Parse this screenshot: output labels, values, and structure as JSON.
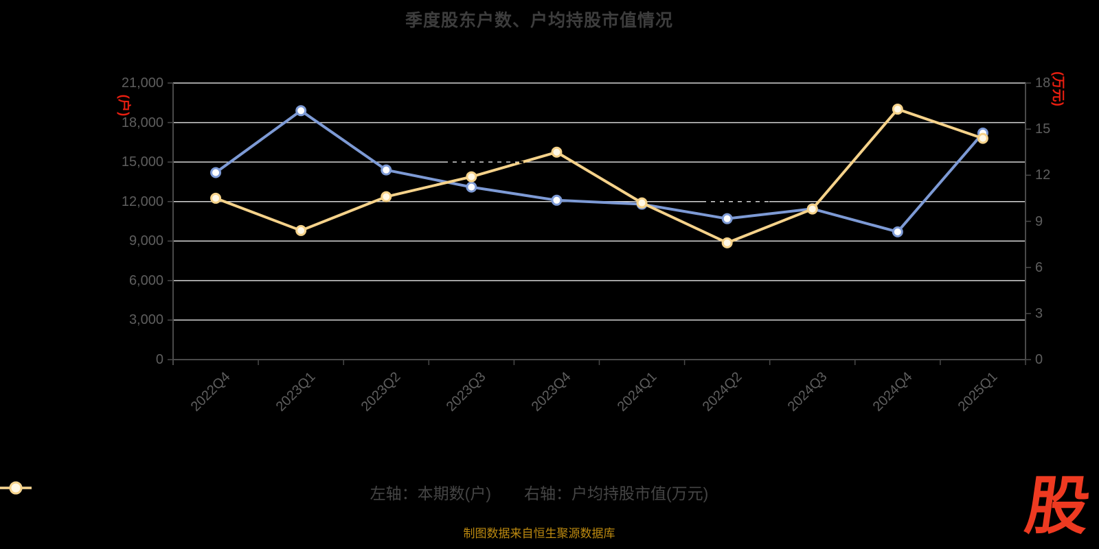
{
  "title": "季度股东户数、户均持股市值情况",
  "footer": {
    "text": "制图数据来自恒生聚源数据库",
    "color": "#bd8a10"
  },
  "logo": {
    "text": "股",
    "color": "#ee3a21"
  },
  "colors": {
    "background": "#000000",
    "title": "#3d3d3d",
    "axis_line": "#4a4a4a",
    "grid_line": "#d6d6d6",
    "tick_label": "#5e5e5e",
    "axis_unit_red": "#e81e10",
    "series_blue": "#7d9ad5",
    "series_yellow": "#f5d28a",
    "marker_fill_blue": "#ffffff",
    "marker_fill_yellow": "#fff8e6"
  },
  "chart_data": {
    "type": "line",
    "categories": [
      "2022Q4",
      "2023Q1",
      "2023Q2",
      "2023Q3",
      "2023Q4",
      "2024Q1",
      "2024Q2",
      "2024Q3",
      "2024Q4",
      "2025Q1"
    ],
    "series": [
      {
        "name": "左轴：本期数(户)",
        "axis": "left",
        "color": "#7d9ad5",
        "marker_fill": "#ffffff",
        "values": [
          14200,
          18900,
          14400,
          13100,
          12100,
          11800,
          10700,
          11450,
          9700,
          17200
        ]
      },
      {
        "name": "右轴：户均持股市值(万元)",
        "axis": "right",
        "color": "#f5d28a",
        "marker_fill": "#fff8e6",
        "values": [
          10.5,
          8.4,
          10.6,
          11.9,
          13.5,
          10.2,
          7.6,
          9.8,
          16.3,
          14.4
        ]
      }
    ],
    "left_axis": {
      "name": "(户)",
      "min": 0,
      "max": 21000,
      "tick_labels": [
        "21,000",
        "18,000",
        "15,000",
        "12,000",
        "9,000",
        "6,000",
        "3,000",
        "0"
      ]
    },
    "right_axis": {
      "name": "(万元)",
      "min": 0,
      "max": 18,
      "tick_labels": [
        "18",
        "15",
        "12",
        "9",
        "6",
        "3",
        "0"
      ]
    },
    "grid": true,
    "legend_position": "bottom"
  }
}
